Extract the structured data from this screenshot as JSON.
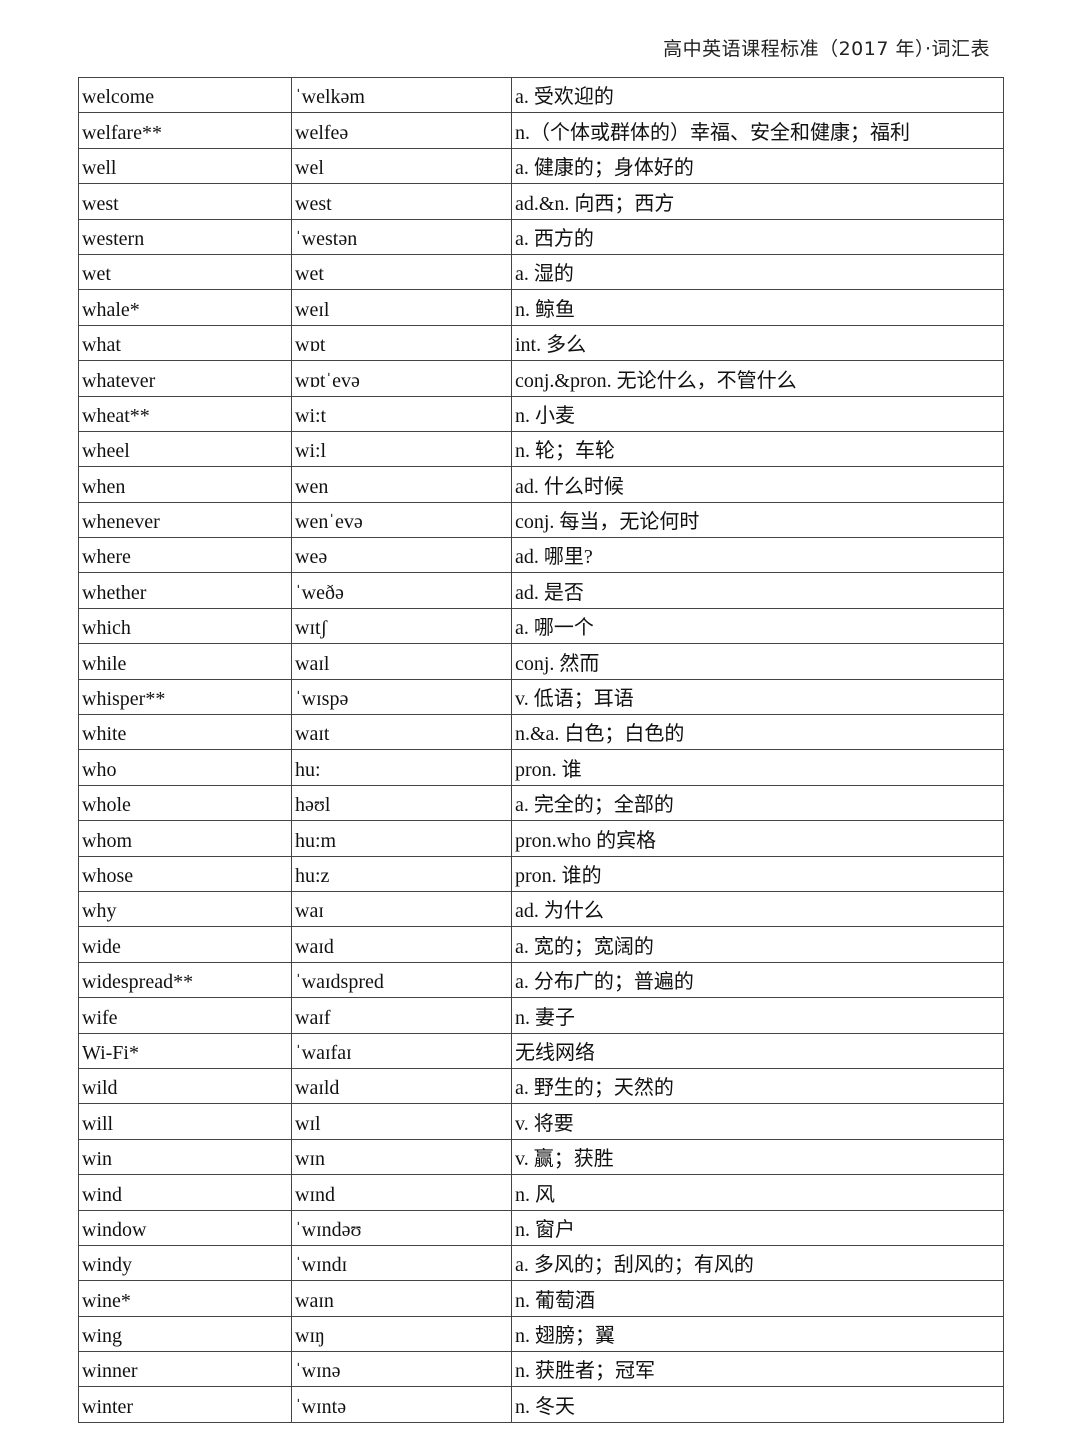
{
  "header": {
    "title": "高中英语课程标准（2017 年）·词汇表"
  },
  "rows": [
    [
      "welcome",
      "ˈwelkəm",
      "a. 受欢迎的"
    ],
    [
      "welfare**",
      "welfeə",
      "n.（个体或群体的）幸福、安全和健康；福利"
    ],
    [
      "well",
      "wel",
      "a. 健康的；身体好的"
    ],
    [
      "west",
      "west",
      "ad.&n. 向西；西方"
    ],
    [
      "western",
      "ˈwestən",
      "a. 西方的"
    ],
    [
      "wet",
      "wet",
      "a. 湿的"
    ],
    [
      "whale*",
      "weɪl",
      "n. 鲸鱼"
    ],
    [
      "what",
      "wɒt",
      "int. 多么"
    ],
    [
      "whatever",
      "wɒtˈevə",
      "conj.&pron. 无论什么，不管什么"
    ],
    [
      "wheat**",
      "wi:t",
      "n. 小麦"
    ],
    [
      "wheel",
      "wi:l",
      "n. 轮；车轮"
    ],
    [
      "when",
      "wen",
      "ad. 什么时候"
    ],
    [
      "whenever",
      "wenˈevə",
      "conj. 每当，无论何时"
    ],
    [
      "where",
      "weə",
      "ad. 哪里?"
    ],
    [
      "whether",
      "ˈweðə",
      "ad. 是否"
    ],
    [
      "which",
      "wɪtʃ",
      "a. 哪一个"
    ],
    [
      "while",
      "waɪl",
      "conj. 然而"
    ],
    [
      "whisper**",
      "ˈwɪspə",
      "v. 低语；耳语"
    ],
    [
      "white",
      "waɪt",
      "n.&a. 白色；白色的"
    ],
    [
      "who",
      "hu:",
      "pron. 谁"
    ],
    [
      "whole",
      "həʊl",
      "a. 完全的；全部的"
    ],
    [
      "whom",
      "hu:m",
      "pron.who 的宾格"
    ],
    [
      "whose",
      "hu:z",
      "pron. 谁的"
    ],
    [
      "why",
      "waɪ",
      "ad. 为什么"
    ],
    [
      "wide",
      "waɪd",
      "a. 宽的；宽阔的"
    ],
    [
      "widespread**",
      "ˈwaɪdspred",
      "a. 分布广的；普遍的"
    ],
    [
      "wife",
      "waɪf",
      "n. 妻子"
    ],
    [
      "Wi-Fi*",
      "ˈwaɪfaɪ",
      "无线网络"
    ],
    [
      "wild",
      "waɪld",
      "a. 野生的；天然的"
    ],
    [
      "will",
      "wɪl",
      "v. 将要"
    ],
    [
      "win",
      "wɪn",
      "v. 赢；获胜"
    ],
    [
      "wind",
      "wɪnd",
      "n. 风"
    ],
    [
      "window",
      "ˈwɪndəʊ",
      "n. 窗户"
    ],
    [
      "windy",
      "ˈwɪndɪ",
      "a. 多风的；刮风的；有风的"
    ],
    [
      "wine*",
      "waɪn",
      "n. 葡萄酒"
    ],
    [
      "wing",
      "wɪŋ",
      "n. 翅膀；翼"
    ],
    [
      "winner",
      "ˈwɪnə",
      "n. 获胜者；冠军"
    ],
    [
      "winter",
      "ˈwɪntə",
      "n. 冬天"
    ]
  ]
}
